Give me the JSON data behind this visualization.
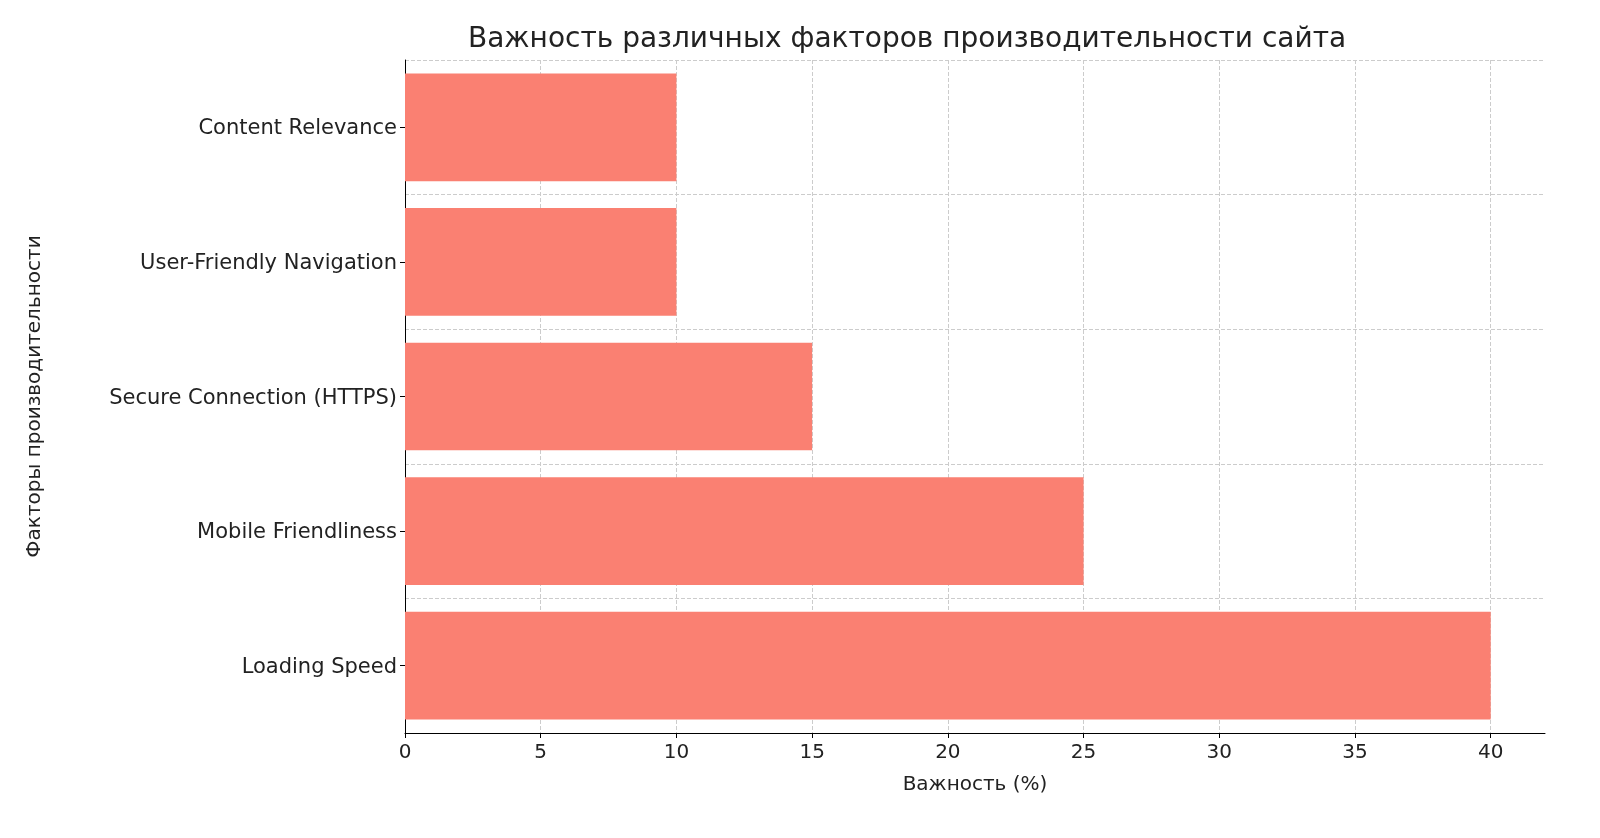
{
  "chart_data": {
    "type": "bar",
    "orientation": "horizontal",
    "title": "Важность различных факторов производительности сайта",
    "xlabel": "Важность (%)",
    "ylabel": "Факторы производительности",
    "categories": [
      "Content Relevance",
      "User-Friendly Navigation",
      "Secure Connection (HTTPS)",
      "Mobile Friendliness",
      "Loading Speed"
    ],
    "values": [
      10,
      10,
      15,
      25,
      40
    ],
    "color": "#fa8072",
    "xlim": [
      0,
      42
    ],
    "xticks": [
      0,
      5,
      10,
      15,
      20,
      25,
      30,
      35,
      40
    ],
    "grid": true
  }
}
